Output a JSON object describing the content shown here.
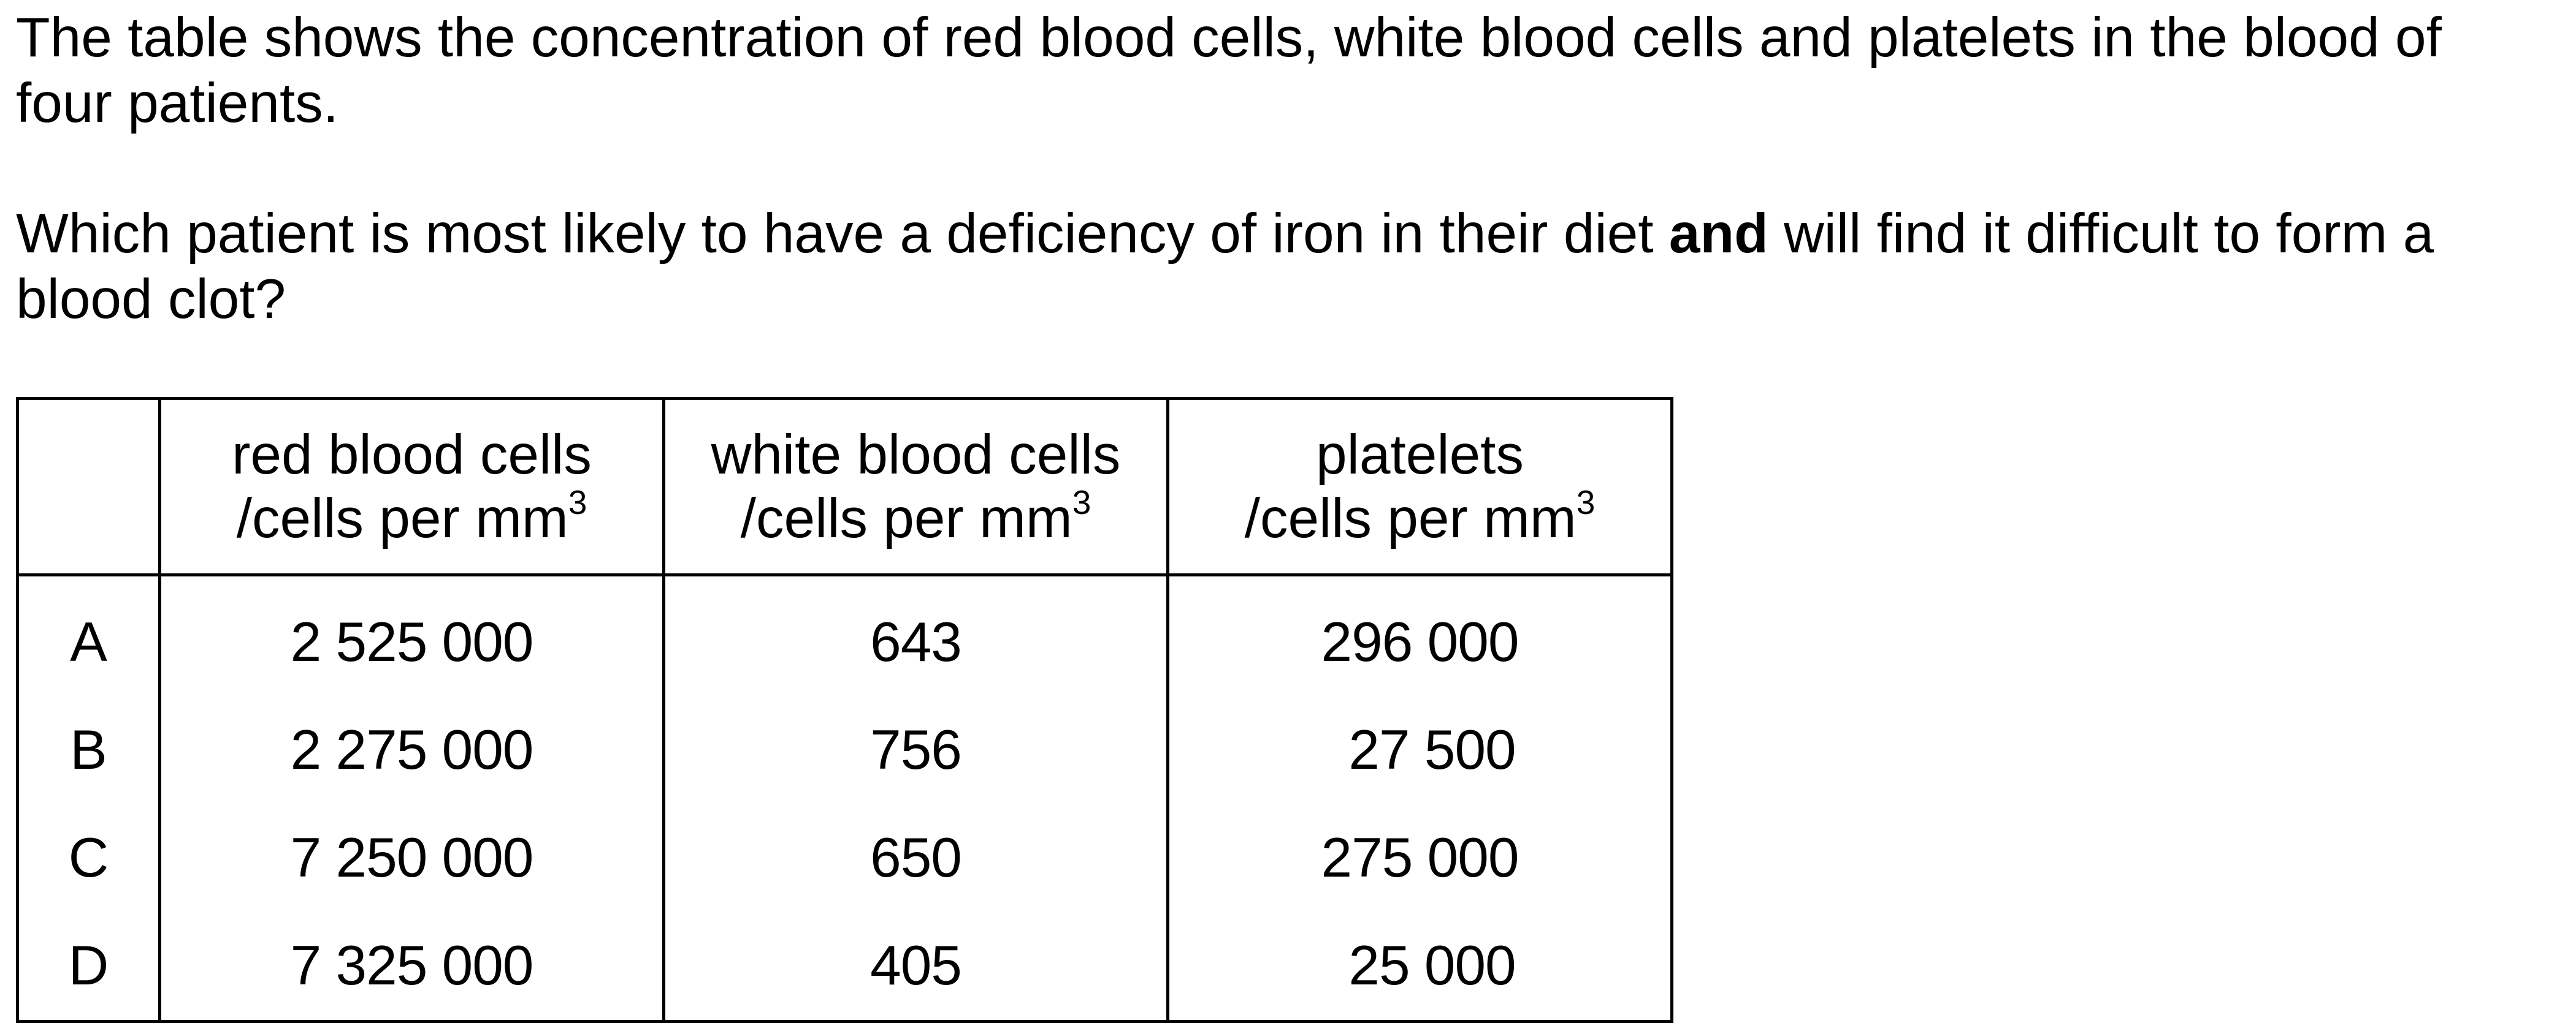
{
  "question": {
    "stem": "The table shows the concentration of red blood cells, white blood cells and platelets in the blood of four patients.",
    "ask_before": "Which patient is most likely to have a deficiency of iron in their diet ",
    "ask_bold": "and",
    "ask_after": " will find it difficult to form a blood clot?"
  },
  "table": {
    "headers": [
      {
        "line1": "red blood cells",
        "line2": "/cells per mm",
        "sup": "3"
      },
      {
        "line1": "white blood cells",
        "line2": "/cells per mm",
        "sup": "3"
      },
      {
        "line1": "platelets",
        "line2": "/cells per mm",
        "sup": "3"
      }
    ],
    "rows": [
      {
        "label": "A",
        "red": "2 525 000",
        "white": "643",
        "platelets": "296 000"
      },
      {
        "label": "B",
        "red": "2 275 000",
        "white": "756",
        "platelets": "27 500"
      },
      {
        "label": "C",
        "red": "7 250 000",
        "white": "650",
        "platelets": "275 000"
      },
      {
        "label": "D",
        "red": "7 325 000",
        "white": "405",
        "platelets": "25 000"
      }
    ]
  }
}
